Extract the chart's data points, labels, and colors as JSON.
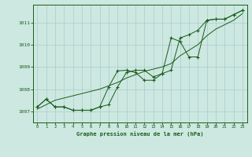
{
  "background_color": "#cce8e0",
  "grid_color": "#aacccc",
  "line_color": "#1a5c1a",
  "title": "Graphe pression niveau de la mer (hPa)",
  "xlim": [
    -0.5,
    23.5
  ],
  "ylim": [
    1006.5,
    1011.8
  ],
  "yticks": [
    1007,
    1008,
    1009,
    1010,
    1011
  ],
  "xticks": [
    0,
    1,
    2,
    3,
    4,
    5,
    6,
    7,
    8,
    9,
    10,
    11,
    12,
    13,
    14,
    15,
    16,
    17,
    18,
    19,
    20,
    21,
    22,
    23
  ],
  "y_linear": [
    1007.1,
    1007.3,
    1007.5,
    1007.6,
    1007.7,
    1007.8,
    1007.9,
    1008.0,
    1008.15,
    1008.3,
    1008.5,
    1008.65,
    1008.8,
    1008.9,
    1009.0,
    1009.15,
    1009.5,
    1009.75,
    1010.0,
    1010.4,
    1010.7,
    1010.9,
    1011.1,
    1011.4
  ],
  "y_smooth": [
    1007.2,
    1007.55,
    1007.2,
    1007.2,
    1007.05,
    1007.05,
    1007.05,
    1007.2,
    1007.3,
    1008.1,
    1008.75,
    1008.85,
    1008.85,
    1008.55,
    1008.7,
    1008.85,
    1010.3,
    1010.45,
    1010.65,
    1011.1,
    1011.15,
    1011.15,
    1011.35,
    1011.55
  ],
  "y_jagged": [
    1007.2,
    1007.55,
    1007.2,
    1007.2,
    1007.05,
    1007.05,
    1007.05,
    1007.2,
    1008.1,
    1008.82,
    1008.85,
    1008.75,
    1008.4,
    1008.4,
    1008.7,
    1010.3,
    1010.15,
    1009.45,
    1009.45,
    1011.1,
    1011.15,
    1011.15,
    1011.35,
    1011.55
  ]
}
